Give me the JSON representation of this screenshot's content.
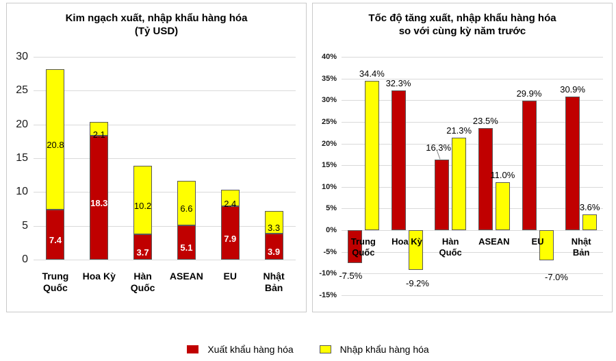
{
  "legend": {
    "items": [
      {
        "label": "Xuất khẩu hàng hóa",
        "color": "#C00000"
      },
      {
        "label": "Nhập khẩu hàng hóa",
        "color": "#FFFF00"
      }
    ]
  },
  "styles": {
    "bar_border": "#595959",
    "gridline": "#D9D9D9",
    "panel_border": "#C9C9C9",
    "export_label_text": "#FFFFFF",
    "import_label_text": "#000000"
  },
  "chart_data": [
    {
      "type": "bar",
      "variant": "stacked",
      "title": "Kim ngạch xuất, nhập khẩu hàng hóa",
      "subtitle": "(Tỷ USD)",
      "categories": [
        "Trung Quốc",
        "Hoa Kỳ",
        "Hàn Quốc",
        "ASEAN",
        "EU",
        "Nhật Bản"
      ],
      "series": [
        {
          "name": "Xuất khẩu hàng hóa",
          "color": "#C00000",
          "values": [
            7.4,
            18.3,
            3.7,
            5.1,
            7.9,
            3.9
          ]
        },
        {
          "name": "Nhập khẩu hàng hóa",
          "color": "#FFFF00",
          "values": [
            20.8,
            2.1,
            10.2,
            6.6,
            2.4,
            3.3
          ]
        }
      ],
      "ylim": [
        0,
        30
      ],
      "ytick_step": 5,
      "grid": true,
      "legend_position": "shared-bottom"
    },
    {
      "type": "bar",
      "variant": "grouped",
      "title": "Tốc độ tăng xuất, nhập khẩu hàng hóa",
      "subtitle": "so với cùng kỳ năm trước",
      "categories": [
        "Trung Quốc",
        "Hoa Kỳ",
        "Hàn Quốc",
        "ASEAN",
        "EU",
        "Nhật Bản"
      ],
      "series": [
        {
          "name": "Xuất khẩu hàng hóa",
          "color": "#C00000",
          "values": [
            -7.5,
            32.3,
            16.3,
            23.5,
            29.9,
            30.9
          ]
        },
        {
          "name": "Nhập khẩu hàng hóa",
          "color": "#FFFF00",
          "values": [
            34.4,
            -9.2,
            21.3,
            11.0,
            -7.0,
            3.6
          ]
        }
      ],
      "ylim": [
        -15,
        40
      ],
      "ytick_step": 5,
      "unit": "%",
      "grid": true,
      "legend_position": "shared-bottom"
    }
  ]
}
